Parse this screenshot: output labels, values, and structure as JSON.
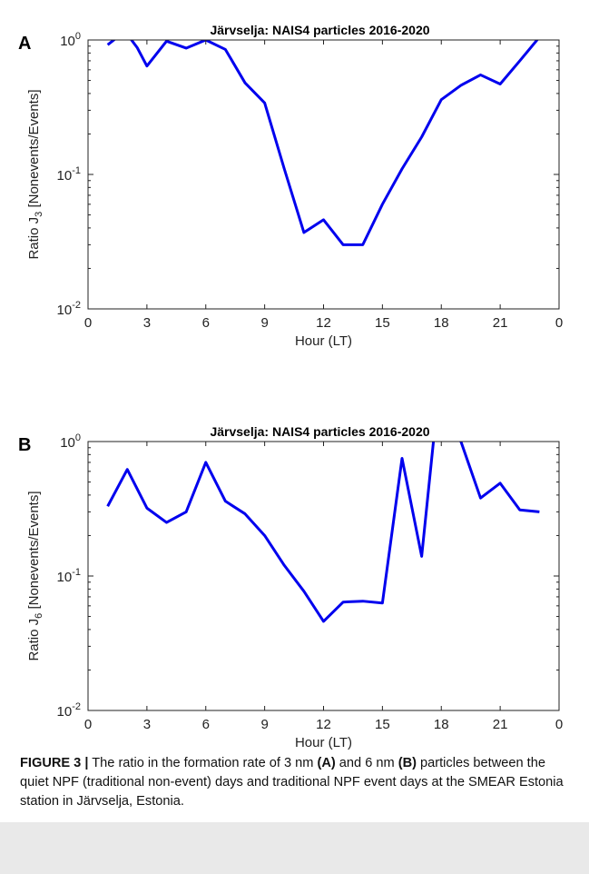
{
  "chart_data": [
    {
      "type": "line",
      "panel_label": "A",
      "title": "Järvselja: NAIS4 particles 2016-2020",
      "xlabel": "Hour (LT)",
      "ylabel_pre": "Ratio J",
      "ylabel_sub": "3",
      "ylabel_post": " [Nonevents/Events]",
      "x_ticks": [
        "0",
        "3",
        "6",
        "9",
        "12",
        "15",
        "18",
        "21",
        "0"
      ],
      "y_ticks": [
        {
          "base": "10",
          "exp": "-2",
          "value": 0.01
        },
        {
          "base": "10",
          "exp": "-1",
          "value": 0.1
        },
        {
          "base": "10",
          "exp": "0",
          "value": 1
        }
      ],
      "xlim": [
        0,
        24
      ],
      "ylim": [
        0.01,
        1
      ],
      "yscale": "log",
      "color": "#0000ee",
      "x": [
        1,
        1.5,
        2,
        2.5,
        3,
        4,
        5,
        6,
        7,
        8,
        9,
        10,
        11,
        12,
        13,
        14,
        15,
        16,
        17,
        18,
        19,
        20,
        21,
        22,
        23
      ],
      "y": [
        0.92,
        1.05,
        1.1,
        0.88,
        0.64,
        0.98,
        0.87,
        1.0,
        0.85,
        0.48,
        0.34,
        0.11,
        0.037,
        0.046,
        0.03,
        0.03,
        0.06,
        0.11,
        0.19,
        0.36,
        0.46,
        0.55,
        0.47,
        0.7,
        1.05
      ]
    },
    {
      "type": "line",
      "panel_label": "B",
      "title": "Järvselja: NAIS4 particles 2016-2020",
      "xlabel": "Hour (LT)",
      "ylabel_pre": "Ratio J",
      "ylabel_sub": "6",
      "ylabel_post": " [Nonevents/Events]",
      "x_ticks": [
        "0",
        "3",
        "6",
        "9",
        "12",
        "15",
        "18",
        "21",
        "0"
      ],
      "y_ticks": [
        {
          "base": "10",
          "exp": "-2",
          "value": 0.01
        },
        {
          "base": "10",
          "exp": "-1",
          "value": 0.1
        },
        {
          "base": "10",
          "exp": "0",
          "value": 1
        }
      ],
      "xlim": [
        0,
        24
      ],
      "ylim": [
        0.01,
        1
      ],
      "yscale": "log",
      "color": "#0000ee",
      "x": [
        1,
        2,
        3,
        4,
        5,
        6,
        7,
        8,
        9,
        10,
        11,
        12,
        13,
        14,
        15,
        16,
        17,
        17.6,
        18,
        19,
        20,
        21,
        22,
        23
      ],
      "y": [
        0.33,
        0.62,
        0.32,
        0.25,
        0.3,
        0.7,
        0.36,
        0.29,
        0.2,
        0.12,
        0.077,
        0.046,
        0.064,
        0.065,
        0.063,
        0.75,
        0.14,
        1.0,
        1.3,
        1.0,
        0.38,
        0.49,
        0.31,
        0.3
      ]
    }
  ],
  "caption": {
    "label": "FIGURE 3 |",
    "t1": " The ratio in the formation rate of 3 nm ",
    "b1": "(A)",
    "t2": " and 6 nm ",
    "b2": "(B)",
    "t3": " particles between the quiet NPF (traditional non-event) days and traditional NPF event days at the SMEAR Estonia station in Järvselja, Estonia."
  }
}
